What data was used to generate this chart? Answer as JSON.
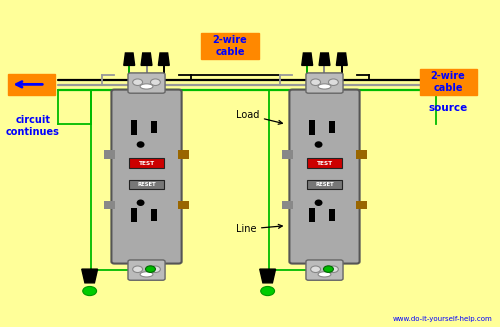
{
  "bg_color": "#FFFF99",
  "wire_black": "#000000",
  "wire_white": "#CCCCCC",
  "wire_green": "#00BB00",
  "wire_gray": "#999999",
  "orange_color": "#FF8800",
  "outlet_body": "#AAAAAA",
  "outlet_dark": "#888888",
  "outlet_border": "#555555",
  "test_btn_color": "#CC0000",
  "reset_btn_color": "#777777",
  "brass_color": "#996600",
  "website_text": "www.do-it-yourself-help.com",
  "label_circuit": "circuit\ncontinues",
  "label_2wire_mid": "2-wire\ncable",
  "label_2wire_right": "2-wire\ncable",
  "label_source": "source",
  "label_load": "Load",
  "label_line": "Line",
  "o1x": 0.285,
  "o2x": 0.645,
  "oy": 0.46,
  "ow": 0.13,
  "oh": 0.52
}
